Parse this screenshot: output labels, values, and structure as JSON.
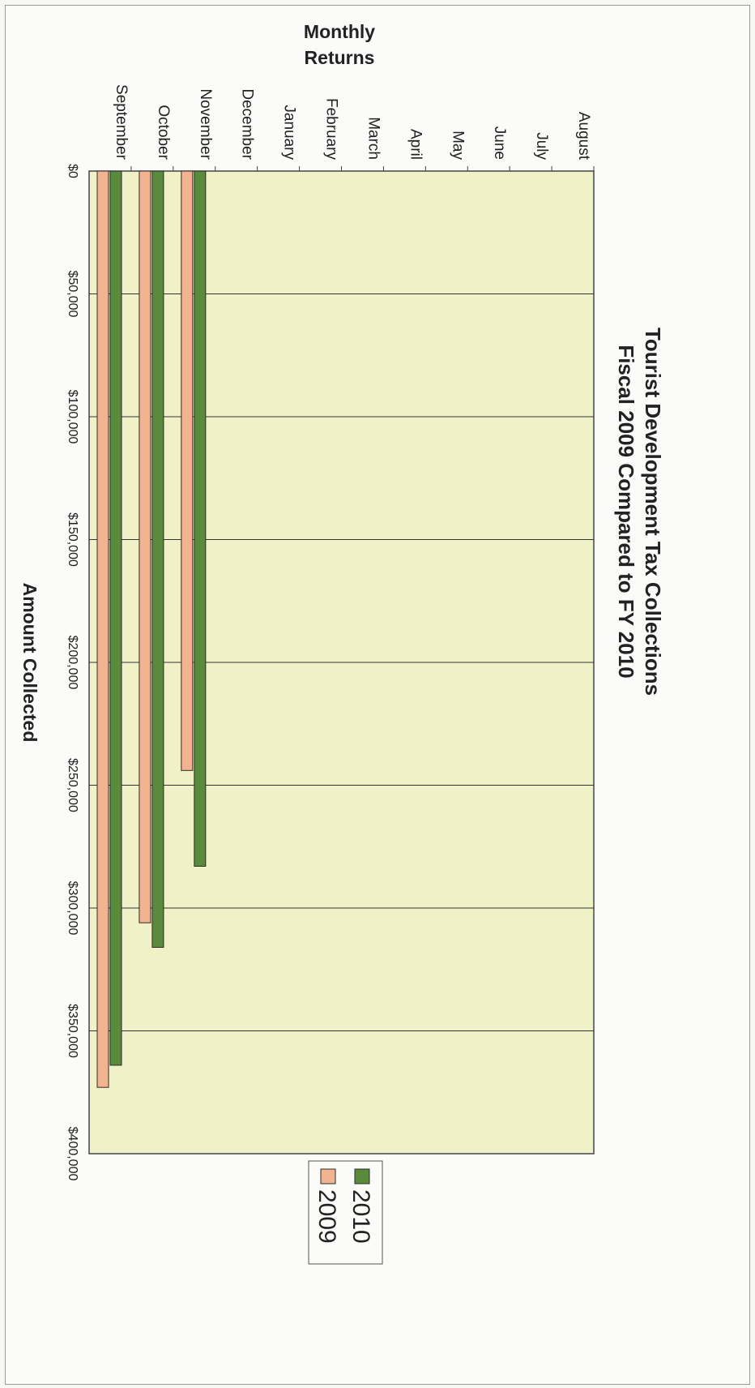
{
  "chart_data": {
    "type": "bar",
    "title": "Tourist Development Tax Collections",
    "subtitle": "Fiscal 2009 Compared to FY 2010",
    "xlabel": "Monthly Returns",
    "ylabel": "Amount Collected",
    "categories": [
      "September",
      "October",
      "November",
      "December",
      "January",
      "February",
      "March",
      "April",
      "May",
      "June",
      "July",
      "August"
    ],
    "series": [
      {
        "name": "2009",
        "color": "#f2b490",
        "values": [
          373000,
          306000,
          244000,
          null,
          null,
          null,
          null,
          null,
          null,
          null,
          null,
          null
        ]
      },
      {
        "name": "2010",
        "color": "#5a8a3c",
        "values": [
          364000,
          316000,
          283000,
          null,
          null,
          null,
          null,
          null,
          null,
          null,
          null,
          null
        ]
      }
    ],
    "ylim": [
      0,
      400000
    ],
    "yticks": [
      "$0",
      "$50,000",
      "$100,000",
      "$150,000",
      "$200,000",
      "$250,000",
      "$300,000",
      "$350,000",
      "$400,000"
    ],
    "legend_order": [
      "2010",
      "2009"
    ],
    "legend_position": "bottom",
    "plot_background": "#f1f1c8",
    "grid": true
  }
}
